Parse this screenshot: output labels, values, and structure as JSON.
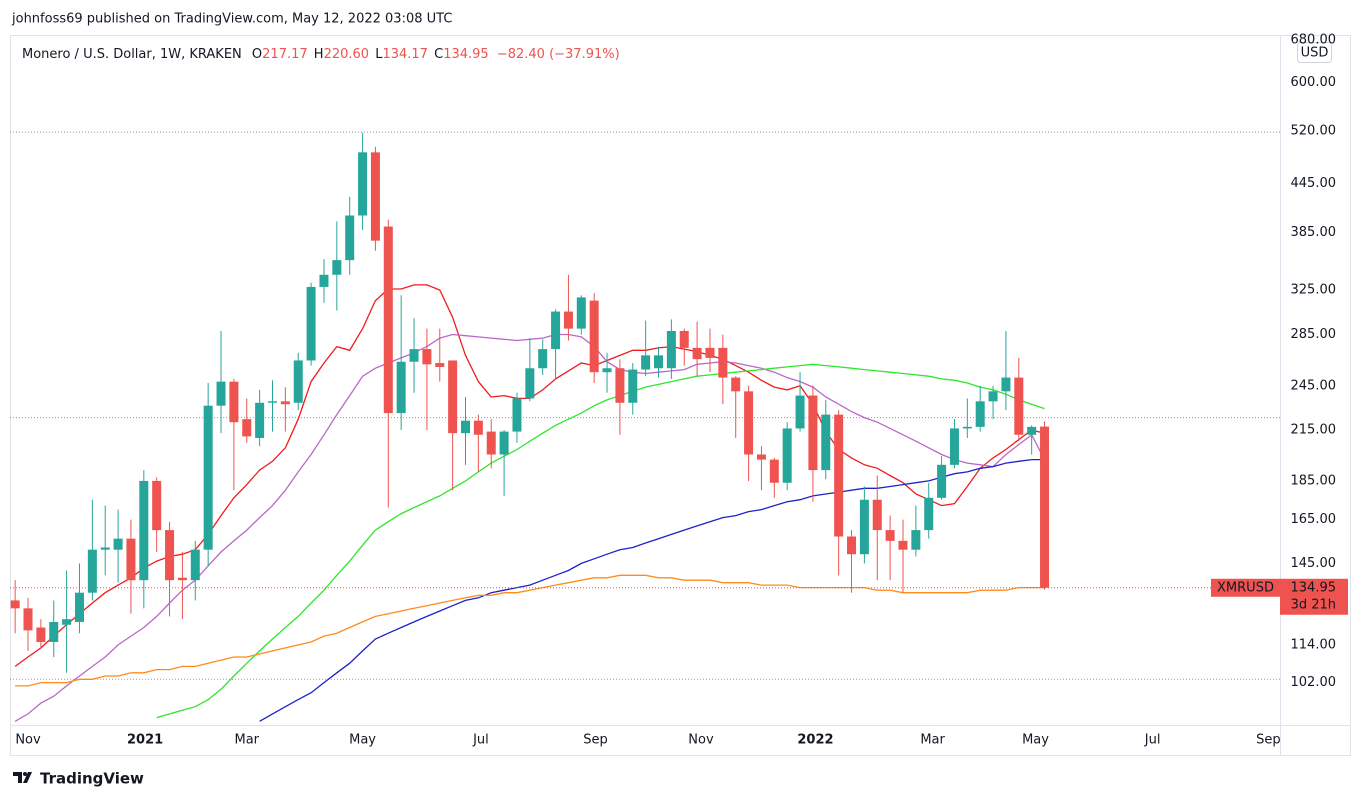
{
  "header": {
    "published": "johnfoss69 published on TradingView.com, May 12, 2022 03:08 UTC"
  },
  "footer": {
    "brand": "TradingView"
  },
  "chart_data": {
    "type": "candlestick",
    "symbol": "Monero / U.S. Dollar, 1W, KRAKEN",
    "ohlc_legend": [
      {
        "key": "O",
        "value": "217.17"
      },
      {
        "key": "H",
        "value": "220.60"
      },
      {
        "key": "L",
        "value": "134.17"
      },
      {
        "key": "C",
        "value": "134.95"
      }
    ],
    "change": "−82.40 (−37.91%)",
    "currency": "USD",
    "last_price": {
      "ticker": "XMRUSD",
      "countdown": "3d 21h",
      "color": "#ef5350"
    },
    "up_color": "#26a69a",
    "down_color": "#ef5350",
    "open": [
      130,
      127,
      120,
      115,
      121,
      122,
      133,
      151,
      151,
      156,
      138,
      185,
      160,
      139,
      138,
      151,
      231,
      248,
      222,
      210,
      233,
      234,
      233,
      264,
      328,
      340,
      355,
      405,
      488,
      392,
      226,
      263,
      273,
      262,
      264,
      213,
      221,
      214,
      200,
      214,
      236,
      258,
      273,
      305,
      290,
      315,
      255,
      258,
      233,
      257,
      258,
      258,
      288,
      274,
      274,
      274,
      251,
      241,
      200,
      197,
      184,
      216,
      238,
      191,
      225,
      157,
      149,
      175,
      160,
      155,
      151,
      160,
      176,
      194,
      216,
      217,
      234,
      241,
      251,
      212,
      217.17
    ],
    "high": [
      138,
      131,
      123,
      130,
      142,
      145,
      175,
      172,
      170,
      165,
      191,
      187,
      164,
      150,
      155,
      247,
      288,
      250,
      236,
      242,
      249,
      244,
      270,
      332,
      356,
      398,
      428,
      517,
      496,
      400,
      320,
      299,
      290,
      290,
      264,
      237,
      225,
      222,
      215,
      240,
      282,
      281,
      307,
      340,
      320,
      322,
      270,
      265,
      262,
      297,
      275,
      298,
      290,
      296,
      290,
      285,
      252,
      245,
      205,
      198,
      220,
      255,
      245,
      235,
      228,
      160,
      182,
      188,
      167,
      165,
      172,
      184,
      199,
      222,
      236,
      245,
      245,
      288,
      266,
      218,
      220.6
    ],
    "low": [
      118,
      112,
      113,
      110,
      105,
      118,
      130,
      140,
      137,
      125,
      127,
      150,
      124,
      123,
      130,
      144,
      213,
      180,
      207,
      205,
      214,
      214,
      228,
      260,
      313,
      306,
      340,
      388,
      365,
      171,
      215,
      240,
      215,
      248,
      180,
      194,
      190,
      192,
      177,
      207,
      234,
      253,
      250,
      280,
      285,
      247,
      240,
      212,
      225,
      252,
      251,
      250,
      260,
      252,
      255,
      232,
      210,
      185,
      180,
      176,
      180,
      214,
      174,
      186,
      140,
      133,
      145,
      138,
      138,
      133,
      148,
      156,
      175,
      192,
      210,
      214,
      222,
      228,
      208,
      200,
      134.17
    ],
    "close": [
      127,
      119,
      115,
      122,
      123,
      133,
      151,
      152,
      156,
      138,
      185,
      160,
      138,
      138,
      151,
      231,
      248,
      220,
      211,
      233,
      234,
      232,
      264,
      328,
      340,
      355,
      405,
      488,
      376,
      226,
      263,
      273,
      261,
      259,
      213,
      221,
      212,
      200,
      214,
      236,
      258,
      273,
      305,
      290,
      318,
      255,
      258,
      233,
      257,
      268,
      268,
      288,
      274,
      265,
      266,
      251,
      241,
      200,
      197,
      184,
      216,
      238,
      191,
      225,
      157,
      149,
      175,
      160,
      155,
      151,
      160,
      176,
      194,
      216,
      217,
      234,
      241,
      251,
      212,
      217,
      134.95
    ],
    "series": [
      {
        "color": "#f01b1b",
        "values": [
          107,
          110,
          113,
          117,
          121,
          125,
          129,
          133,
          136,
          139,
          143,
          146,
          148,
          149,
          151,
          158,
          167,
          176,
          183,
          191,
          196,
          204,
          222,
          248,
          262,
          275,
          272,
          290,
          315,
          326,
          326,
          330,
          330,
          325,
          300,
          268,
          248,
          237,
          238,
          236,
          236,
          242,
          250,
          256,
          262,
          260,
          264,
          268,
          272,
          272,
          274,
          275,
          273,
          271,
          268,
          265,
          260,
          255,
          249,
          244,
          242,
          245,
          232,
          214,
          203,
          198,
          194,
          192,
          188,
          184,
          178,
          175,
          172,
          173,
          182,
          192,
          198,
          203,
          209,
          215,
          213
        ]
      },
      {
        "color": "#ba68c8",
        "values": [
          91,
          93,
          96,
          98,
          101,
          104,
          107,
          110,
          114,
          117,
          120,
          124,
          129,
          134,
          138,
          144,
          150,
          155,
          160,
          166,
          172,
          180,
          190,
          200,
          212,
          225,
          238,
          252,
          258,
          262,
          266,
          270,
          275,
          282,
          285,
          284,
          283,
          282,
          281,
          280,
          281,
          282,
          285,
          285,
          283,
          275,
          263,
          257,
          255,
          254,
          255,
          256,
          257,
          261,
          262,
          263,
          262,
          260,
          258,
          255,
          251,
          248,
          244,
          237,
          232,
          227,
          223,
          220,
          216,
          212,
          208,
          204,
          200,
          197,
          195,
          194,
          193,
          200,
          206,
          212,
          197
        ]
      },
      {
        "color": "#2ee62e",
        "values": [
          null,
          null,
          null,
          null,
          null,
          null,
          null,
          null,
          null,
          null,
          null,
          92,
          93,
          94,
          95,
          97,
          100,
          104,
          108,
          112,
          116,
          120,
          124,
          129,
          134,
          140,
          146,
          153,
          160,
          164,
          168,
          171,
          174,
          177,
          181,
          185,
          190,
          195,
          199,
          203,
          208,
          213,
          218,
          222,
          226,
          231,
          235,
          238,
          241,
          244,
          246,
          248,
          250,
          252,
          253,
          254,
          255,
          256,
          257,
          258,
          259,
          260,
          261,
          260,
          259,
          258,
          257,
          256,
          255,
          254,
          253,
          252,
          250,
          249,
          247,
          244,
          242,
          239,
          235,
          232,
          229
        ]
      },
      {
        "color": "#1e22c8",
        "values": [
          null,
          null,
          null,
          null,
          null,
          null,
          null,
          null,
          null,
          null,
          null,
          null,
          null,
          null,
          null,
          null,
          null,
          null,
          null,
          91,
          93,
          95,
          97,
          99,
          102,
          105,
          108,
          112,
          116,
          118,
          120,
          122,
          124,
          126,
          128,
          130,
          131,
          133,
          134,
          135,
          136,
          138,
          140,
          142,
          145,
          147,
          149,
          151,
          152,
          154,
          156,
          158,
          160,
          162,
          164,
          166,
          167,
          169,
          170,
          172,
          174,
          175,
          177,
          178,
          179,
          180,
          181,
          181,
          182,
          183,
          184,
          185,
          187,
          189,
          190,
          192,
          193,
          195,
          196,
          197,
          197
        ]
      },
      {
        "color": "#ff8c1a",
        "values": [
          101,
          101,
          102,
          102,
          102,
          103,
          103,
          104,
          104,
          105,
          105,
          106,
          106,
          107,
          107,
          108,
          109,
          110,
          110,
          111,
          112,
          113,
          114,
          115,
          117,
          118,
          120,
          122,
          124,
          125,
          126,
          127,
          128,
          129,
          130,
          131,
          132,
          132,
          133,
          133,
          134,
          135,
          136,
          137,
          138,
          139,
          139,
          140,
          140,
          140,
          139,
          139,
          138,
          138,
          138,
          137,
          137,
          137,
          136,
          136,
          136,
          135,
          135,
          135,
          135,
          135,
          135,
          134,
          134,
          133,
          133,
          133,
          133,
          133,
          133,
          134,
          134,
          134,
          135,
          135,
          135
        ]
      }
    ],
    "reference_lines": [
      518,
      223,
      103
    ],
    "xlim": [
      -0.4,
      98.3
    ],
    "xticks": [
      {
        "value": 1.0,
        "label": "Nov"
      },
      {
        "value": 10.1,
        "label": "2021"
      },
      {
        "value": 18.0,
        "label": "Mar"
      },
      {
        "value": 27.0,
        "label": "May"
      },
      {
        "value": 36.2,
        "label": "Jul"
      },
      {
        "value": 45.1,
        "label": "Sep"
      },
      {
        "value": 53.3,
        "label": "Nov"
      },
      {
        "value": 62.2,
        "label": "2022"
      },
      {
        "value": 71.3,
        "label": "Mar"
      },
      {
        "value": 79.3,
        "label": "May"
      },
      {
        "value": 88.4,
        "label": "Jul"
      },
      {
        "value": 97.4,
        "label": "Sep"
      }
    ],
    "ylim": [
      90,
      690
    ],
    "log_scale": true,
    "yticks": [
      {
        "value": 680,
        "label": "680.00"
      },
      {
        "value": 600,
        "label": "600.00"
      },
      {
        "value": 520,
        "label": "520.00"
      },
      {
        "value": 445,
        "label": "445.00"
      },
      {
        "value": 385,
        "label": "385.00"
      },
      {
        "value": 325,
        "label": "325.00"
      },
      {
        "value": 285,
        "label": "285.00"
      },
      {
        "value": 245,
        "label": "245.00"
      },
      {
        "value": 215,
        "label": "215.00"
      },
      {
        "value": 185,
        "label": "185.00"
      },
      {
        "value": 165,
        "label": "165.00"
      },
      {
        "value": 145,
        "label": "145.00"
      },
      {
        "value": 114,
        "label": "114.00"
      },
      {
        "value": 102,
        "label": "102.00"
      }
    ]
  }
}
